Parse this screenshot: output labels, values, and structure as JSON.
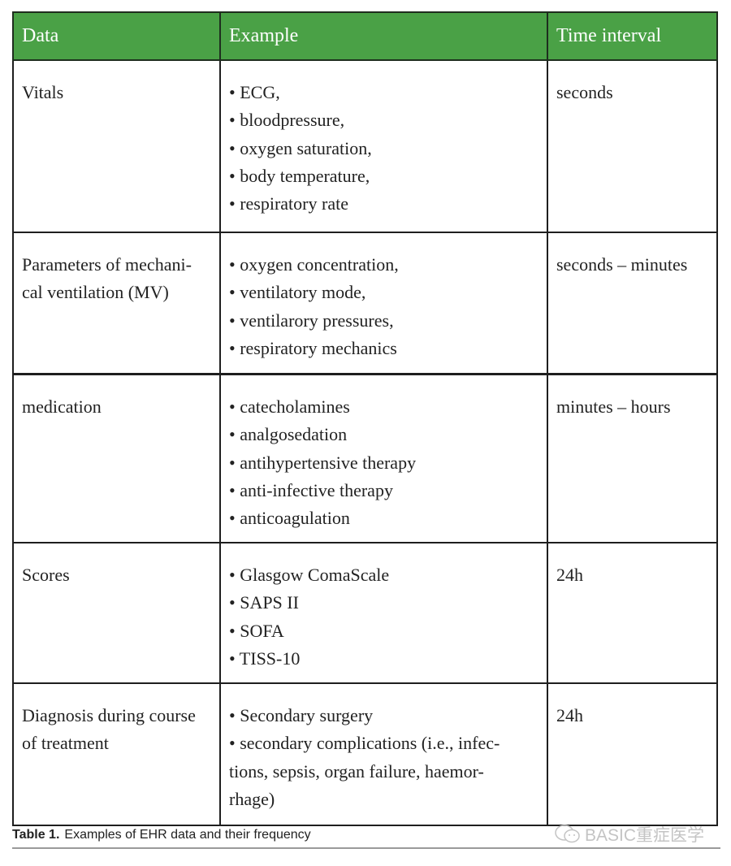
{
  "table": {
    "headers": [
      "Data",
      "Example",
      "Time interval"
    ],
    "header_color": "#4aa146",
    "rows": [
      {
        "data": [
          "Vitals"
        ],
        "example": [
          "• ECG,",
          "• bloodpressure,",
          "• oxygen saturation,",
          "• body temperature,",
          "• respiratory rate"
        ],
        "interval": [
          "seconds"
        ]
      },
      {
        "data": [
          "Parameters of mechani-",
          "cal ventilation (MV)"
        ],
        "example": [
          "• oxygen concentration,",
          "• ventilatory mode,",
          "• ventilarory pressures,",
          "• respiratory mechanics"
        ],
        "interval": [
          "seconds – minutes"
        ]
      },
      {
        "data": [
          "medication"
        ],
        "example": [
          "• catecholamines",
          "• analgosedation",
          "• antihypertensive therapy",
          "• anti-infective therapy",
          "• anticoagulation"
        ],
        "interval": [
          "minutes – hours"
        ]
      },
      {
        "data": [
          "Scores"
        ],
        "example": [
          "• Glasgow ComaScale",
          "• SAPS II",
          "• SOFA",
          "• TISS-10"
        ],
        "interval": [
          "24h"
        ]
      },
      {
        "data": [
          "Diagnosis during course",
          "of treatment"
        ],
        "example": [
          "• Secondary surgery",
          "• secondary complications (i.e., infec-",
          "tions, sepsis, organ failure, haemor-",
          "rhage)"
        ],
        "interval": [
          "24h"
        ]
      }
    ]
  },
  "caption": {
    "label": "Table 1.",
    "text": "Examples of EHR data and their frequency"
  },
  "watermark": {
    "icon": "wechat-icon",
    "text": "BASIC重症医学"
  }
}
